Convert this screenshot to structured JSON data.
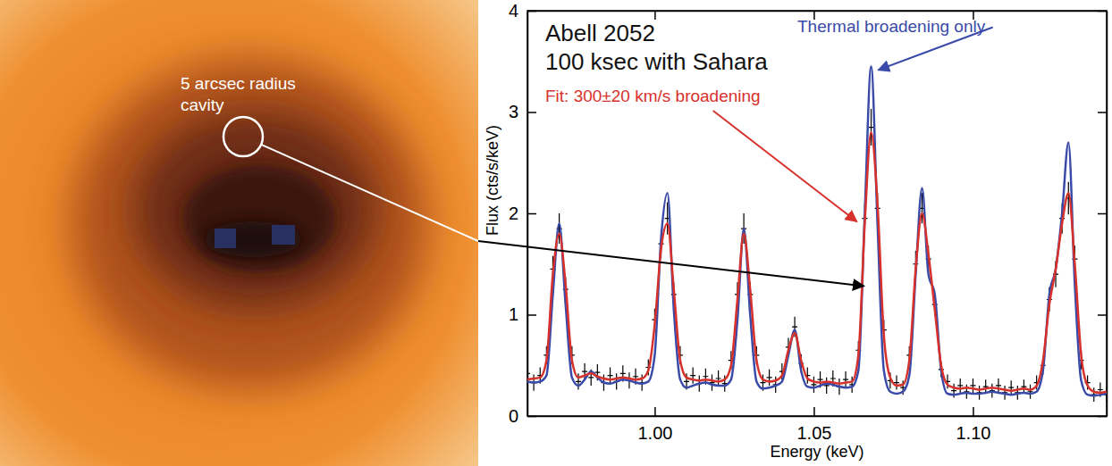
{
  "image": {
    "label": "5 arcsec radius cavity"
  },
  "chart_data": {
    "type": "line",
    "title": "Abell 2052",
    "subtitle": "100 ksec with Sahara",
    "xlabel": "Energy (keV)",
    "ylabel": "Flux (cts/s/keV)",
    "xlim": [
      0.96,
      1.142
    ],
    "ylim": [
      0,
      4
    ],
    "xticks": [
      {
        "value": 1,
        "label": "1.00"
      },
      1.05,
      {
        "value": 1.1,
        "label": "1.10"
      }
    ],
    "yticks": [
      0,
      1,
      2,
      3,
      4
    ],
    "grid": false,
    "annotations": [
      {
        "text": "Thermal broadening only",
        "color": "#3a4aa8"
      },
      {
        "text": "Fit: 300±20 km/s broadening",
        "color": "#d7312c"
      }
    ],
    "x": [
      0.96,
      0.962,
      0.964,
      0.966,
      0.968,
      0.97,
      0.972,
      0.974,
      0.976,
      0.978,
      0.98,
      0.982,
      0.984,
      0.986,
      0.988,
      0.99,
      0.992,
      0.994,
      0.996,
      0.998,
      1,
      1.002,
      1.004,
      1.006,
      1.008,
      1.01,
      1.012,
      1.014,
      1.016,
      1.018,
      1.02,
      1.022,
      1.024,
      1.026,
      1.028,
      1.03,
      1.032,
      1.034,
      1.036,
      1.038,
      1.04,
      1.042,
      1.044,
      1.046,
      1.048,
      1.05,
      1.052,
      1.054,
      1.056,
      1.058,
      1.06,
      1.062,
      1.064,
      1.066,
      1.068,
      1.07,
      1.072,
      1.074,
      1.076,
      1.078,
      1.08,
      1.082,
      1.084,
      1.086,
      1.088,
      1.09,
      1.092,
      1.094,
      1.096,
      1.098,
      1.1,
      1.102,
      1.104,
      1.106,
      1.108,
      1.11,
      1.112,
      1.114,
      1.116,
      1.118,
      1.12,
      1.122,
      1.124,
      1.126,
      1.128,
      1.13,
      1.132,
      1.134,
      1.136,
      1.138,
      1.14,
      1.142
    ],
    "series": [
      {
        "type": "scatter",
        "marker": "errorbar",
        "color": "#000000",
        "values": [
          0.42,
          0.33,
          0.4,
          0.6,
          1.45,
          1.85,
          1.25,
          0.6,
          0.34,
          0.44,
          0.38,
          0.43,
          0.33,
          0.4,
          0.34,
          0.42,
          0.35,
          0.39,
          0.33,
          0.48,
          0.95,
          1.7,
          1.95,
          1.2,
          0.6,
          0.34,
          0.4,
          0.32,
          0.39,
          0.33,
          0.37,
          0.32,
          0.55,
          1.2,
          1.85,
          1.2,
          0.6,
          0.33,
          0.38,
          0.31,
          0.44,
          0.68,
          0.88,
          0.52,
          0.4,
          0.31,
          0.36,
          0.3,
          0.37,
          0.29,
          0.36,
          0.31,
          0.65,
          1.95,
          2.85,
          2.05,
          0.85,
          0.35,
          0.33,
          0.28,
          0.6,
          1.5,
          2.05,
          1.55,
          1.1,
          0.46,
          0.34,
          0.25,
          0.3,
          0.24,
          0.3,
          0.23,
          0.29,
          0.25,
          0.3,
          0.23,
          0.28,
          0.23,
          0.29,
          0.24,
          0.33,
          0.5,
          1.15,
          1.4,
          1.95,
          2.15,
          1.55,
          0.55,
          0.33,
          0.21,
          0.26,
          0.21
        ],
        "errors": [
          0.08,
          0.08,
          0.08,
          0.09,
          0.13,
          0.15,
          0.12,
          0.09,
          0.08,
          0.08,
          0.08,
          0.08,
          0.08,
          0.08,
          0.08,
          0.08,
          0.08,
          0.08,
          0.08,
          0.08,
          0.11,
          0.14,
          0.16,
          0.12,
          0.09,
          0.08,
          0.08,
          0.08,
          0.08,
          0.08,
          0.08,
          0.08,
          0.09,
          0.12,
          0.15,
          0.12,
          0.09,
          0.08,
          0.08,
          0.08,
          0.08,
          0.09,
          0.1,
          0.09,
          0.08,
          0.08,
          0.08,
          0.08,
          0.08,
          0.08,
          0.08,
          0.08,
          0.09,
          0.15,
          0.18,
          0.15,
          0.1,
          0.08,
          0.07,
          0.07,
          0.09,
          0.13,
          0.15,
          0.13,
          0.11,
          0.08,
          0.07,
          0.07,
          0.07,
          0.07,
          0.07,
          0.07,
          0.07,
          0.07,
          0.07,
          0.07,
          0.07,
          0.07,
          0.07,
          0.07,
          0.07,
          0.09,
          0.12,
          0.13,
          0.15,
          0.16,
          0.13,
          0.09,
          0.07,
          0.07,
          0.07,
          0.07
        ]
      },
      {
        "type": "line",
        "line_style": "solid",
        "color": "#3a4aa8",
        "values": [
          0.34,
          0.33,
          0.34,
          0.4,
          1.2,
          1.9,
          1.1,
          0.38,
          0.3,
          0.36,
          0.44,
          0.38,
          0.33,
          0.32,
          0.34,
          0.36,
          0.35,
          0.33,
          0.32,
          0.34,
          0.6,
          1.75,
          2.2,
          1.05,
          0.36,
          0.28,
          0.3,
          0.32,
          0.33,
          0.31,
          0.3,
          0.3,
          0.36,
          0.95,
          1.85,
          1.0,
          0.34,
          0.27,
          0.28,
          0.3,
          0.34,
          0.6,
          0.85,
          0.45,
          0.29,
          0.28,
          0.3,
          0.32,
          0.31,
          0.29,
          0.28,
          0.29,
          0.45,
          2.0,
          3.45,
          1.9,
          0.45,
          0.24,
          0.22,
          0.24,
          0.4,
          1.4,
          2.25,
          1.4,
          1.2,
          0.45,
          0.22,
          0.21,
          0.22,
          0.23,
          0.22,
          0.22,
          0.23,
          0.24,
          0.23,
          0.22,
          0.21,
          0.22,
          0.23,
          0.22,
          0.24,
          0.45,
          1.2,
          1.45,
          2.0,
          2.7,
          1.3,
          0.35,
          0.21,
          0.2,
          0.21,
          0.22
        ]
      },
      {
        "type": "line",
        "line_style": "solid",
        "color": "#d7312c",
        "values": [
          0.36,
          0.37,
          0.38,
          0.55,
          1.4,
          1.8,
          1.3,
          0.55,
          0.38,
          0.4,
          0.42,
          0.39,
          0.37,
          0.36,
          0.37,
          0.38,
          0.37,
          0.36,
          0.37,
          0.45,
          0.9,
          1.65,
          1.9,
          1.25,
          0.55,
          0.38,
          0.36,
          0.35,
          0.36,
          0.35,
          0.34,
          0.36,
          0.5,
          1.15,
          1.8,
          1.25,
          0.55,
          0.36,
          0.34,
          0.35,
          0.4,
          0.65,
          0.82,
          0.55,
          0.37,
          0.34,
          0.33,
          0.34,
          0.33,
          0.32,
          0.33,
          0.34,
          0.6,
          1.9,
          2.8,
          2.1,
          0.8,
          0.38,
          0.3,
          0.31,
          0.55,
          1.45,
          2.0,
          1.6,
          1.05,
          0.5,
          0.31,
          0.28,
          0.27,
          0.28,
          0.27,
          0.26,
          0.27,
          0.28,
          0.27,
          0.26,
          0.25,
          0.26,
          0.27,
          0.26,
          0.3,
          0.55,
          1.1,
          1.45,
          1.9,
          2.2,
          1.5,
          0.6,
          0.3,
          0.24,
          0.23,
          0.24
        ]
      }
    ]
  }
}
